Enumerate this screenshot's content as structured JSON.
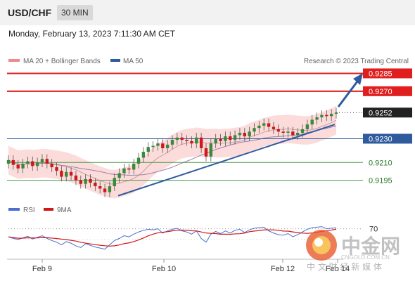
{
  "header": {
    "pair": "USD/CHF",
    "timeframe": "30 MIN"
  },
  "datetime": "Monday, February 13, 2023 7:11:30 AM CET",
  "legend": {
    "ma20": "MA 20 + Bollinger Bands",
    "ma50": "MA 50",
    "credit": "Research © 2023 Trading Central"
  },
  "rsi_legend": {
    "rsi": "RSI",
    "ma9": "9MA"
  },
  "colors": {
    "resistance": "#e01e1e",
    "support": "#2f5b9e",
    "support_minor": "#4a9a4a",
    "candle_up": "#3a8a3a",
    "candle_down": "#d01818",
    "bollinger_fill": "#fbd5d5",
    "current": "#222222"
  },
  "watermark": {
    "name": "中金网",
    "domain": "CNGOLD.COM.CN",
    "tagline": "中 文 财 经 新 媒 体"
  },
  "chart_data": {
    "type": "candlestick",
    "x_ticks": [
      "Feb 9",
      "Feb 10",
      "Feb 12",
      "Feb 14"
    ],
    "y_range": [
      0.918,
      0.929
    ],
    "levels": [
      {
        "value": 0.9285,
        "label": "0.9285",
        "kind": "resistance"
      },
      {
        "value": 0.927,
        "label": "0.9270",
        "kind": "resistance"
      },
      {
        "value": 0.9252,
        "label": "0.9252",
        "kind": "current"
      },
      {
        "value": 0.923,
        "label": "0.9230",
        "kind": "support"
      },
      {
        "value": 0.921,
        "label": "0.9210",
        "kind": "support-minor"
      },
      {
        "value": 0.9195,
        "label": "0.9195",
        "kind": "support-minor"
      }
    ],
    "close_series": [
      0.9212,
      0.9208,
      0.9205,
      0.9209,
      0.9211,
      0.9207,
      0.921,
      0.9213,
      0.9209,
      0.9206,
      0.9203,
      0.9198,
      0.9202,
      0.9199,
      0.9195,
      0.9192,
      0.9196,
      0.9193,
      0.919,
      0.9188,
      0.9185,
      0.919,
      0.9197,
      0.9201,
      0.9205,
      0.9204,
      0.9209,
      0.9214,
      0.9219,
      0.9223,
      0.9224,
      0.9226,
      0.9222,
      0.9225,
      0.9229,
      0.9231,
      0.9229,
      0.9228,
      0.9226,
      0.9231,
      0.9222,
      0.9215,
      0.9226,
      0.923,
      0.9228,
      0.9232,
      0.9229,
      0.9233,
      0.9235,
      0.9232,
      0.9236,
      0.9239,
      0.9241,
      0.9243,
      0.924,
      0.9238,
      0.9236,
      0.9235,
      0.9236,
      0.9233,
      0.9235,
      0.9238,
      0.9242,
      0.9246,
      0.9248,
      0.925,
      0.9249,
      0.9251,
      0.9252
    ],
    "trendline": [
      [
        0.9182,
        0
      ],
      [
        0.9242,
        0.92
      ]
    ],
    "rsi": {
      "label": "RSI",
      "ma_label": "9MA",
      "level": 70,
      "values": [
        55,
        52,
        50,
        53,
        56,
        51,
        54,
        57,
        52,
        48,
        45,
        40,
        46,
        43,
        38,
        35,
        42,
        39,
        36,
        34,
        32,
        40,
        48,
        52,
        57,
        55,
        60,
        64,
        67,
        69,
        68,
        70,
        62,
        66,
        69,
        71,
        66,
        64,
        60,
        66,
        52,
        45,
        60,
        65,
        61,
        66,
        62,
        67,
        69,
        63,
        68,
        71,
        72,
        73,
        66,
        62,
        59,
        58,
        61,
        55,
        59,
        64,
        69,
        72,
        73,
        74,
        70,
        71,
        72
      ]
    }
  }
}
